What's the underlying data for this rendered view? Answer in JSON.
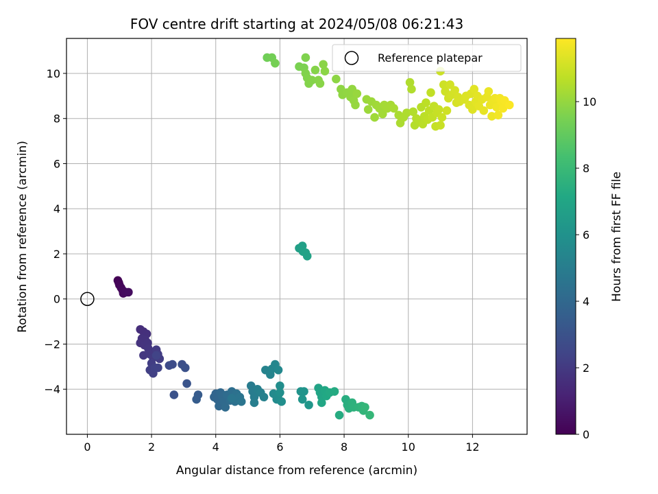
{
  "chart_data": {
    "type": "scatter",
    "title": "FOV centre drift starting at 2024/05/08 06:21:43",
    "xlabel": "Angular distance from reference (arcmin)",
    "ylabel": "Rotation from reference (arcmin)",
    "xlim": [
      -0.65,
      13.7
    ],
    "ylim": [
      -6.0,
      11.55
    ],
    "x_ticks": [
      0,
      2,
      4,
      6,
      8,
      10,
      12
    ],
    "y_ticks": [
      -4,
      -2,
      0,
      2,
      4,
      6,
      8,
      10
    ],
    "grid": true,
    "legend": {
      "position": "top-right",
      "entries": [
        "Reference platepar"
      ]
    },
    "colorbar": {
      "label": "Hours from first FF file",
      "colormap": "viridis",
      "range": [
        0,
        11.9
      ],
      "ticks": [
        0,
        2,
        4,
        6,
        8,
        10
      ]
    },
    "reference_point": {
      "x": 0,
      "y": 0,
      "label": "Reference platepar"
    },
    "points": [
      {
        "x": 0.95,
        "y": 0.82,
        "t": 0.05
      },
      {
        "x": 0.98,
        "y": 0.72,
        "t": 0.1
      },
      {
        "x": 1.0,
        "y": 0.62,
        "t": 0.15
      },
      {
        "x": 1.05,
        "y": 0.5,
        "t": 0.2
      },
      {
        "x": 1.1,
        "y": 0.38,
        "t": 0.25
      },
      {
        "x": 1.12,
        "y": 0.25,
        "t": 0.3
      },
      {
        "x": 1.2,
        "y": 0.3,
        "t": 0.35
      },
      {
        "x": 1.28,
        "y": 0.3,
        "t": 0.4
      },
      {
        "x": 1.65,
        "y": -1.35,
        "t": 1.55
      },
      {
        "x": 1.75,
        "y": -1.45,
        "t": 1.6
      },
      {
        "x": 1.85,
        "y": -1.55,
        "t": 1.65
      },
      {
        "x": 1.7,
        "y": -1.75,
        "t": 1.7
      },
      {
        "x": 1.8,
        "y": -1.8,
        "t": 1.72
      },
      {
        "x": 1.65,
        "y": -1.95,
        "t": 1.75
      },
      {
        "x": 1.78,
        "y": -2.05,
        "t": 1.78
      },
      {
        "x": 1.88,
        "y": -1.95,
        "t": 1.8
      },
      {
        "x": 1.9,
        "y": -2.2,
        "t": 1.85
      },
      {
        "x": 1.75,
        "y": -2.5,
        "t": 1.9
      },
      {
        "x": 1.95,
        "y": -2.45,
        "t": 1.95
      },
      {
        "x": 2.05,
        "y": -2.6,
        "t": 2.0
      },
      {
        "x": 2.15,
        "y": -2.25,
        "t": 2.05
      },
      {
        "x": 2.2,
        "y": -2.45,
        "t": 2.1
      },
      {
        "x": 2.25,
        "y": -2.65,
        "t": 2.12
      },
      {
        "x": 2.0,
        "y": -2.85,
        "t": 2.15
      },
      {
        "x": 1.95,
        "y": -3.15,
        "t": 2.2
      },
      {
        "x": 2.05,
        "y": -3.3,
        "t": 2.25
      },
      {
        "x": 2.1,
        "y": -3.05,
        "t": 2.3
      },
      {
        "x": 2.2,
        "y": -3.05,
        "t": 2.35
      },
      {
        "x": 2.15,
        "y": -2.5,
        "t": 2.38
      },
      {
        "x": 2.55,
        "y": -2.95,
        "t": 2.7
      },
      {
        "x": 2.65,
        "y": -2.9,
        "t": 2.75
      },
      {
        "x": 2.95,
        "y": -2.9,
        "t": 2.85
      },
      {
        "x": 3.05,
        "y": -3.05,
        "t": 2.95
      },
      {
        "x": 2.7,
        "y": -4.25,
        "t": 3.0
      },
      {
        "x": 3.1,
        "y": -3.75,
        "t": 3.1
      },
      {
        "x": 3.45,
        "y": -4.25,
        "t": 3.4
      },
      {
        "x": 3.4,
        "y": -4.45,
        "t": 3.45
      },
      {
        "x": 3.95,
        "y": -4.35,
        "t": 3.8
      },
      {
        "x": 4.0,
        "y": -4.2,
        "t": 3.85
      },
      {
        "x": 4.05,
        "y": -4.45,
        "t": 3.9
      },
      {
        "x": 4.1,
        "y": -4.75,
        "t": 3.95
      },
      {
        "x": 4.15,
        "y": -4.15,
        "t": 4.0
      },
      {
        "x": 4.2,
        "y": -4.3,
        "t": 4.05
      },
      {
        "x": 4.25,
        "y": -4.55,
        "t": 4.1
      },
      {
        "x": 4.3,
        "y": -4.8,
        "t": 4.15
      },
      {
        "x": 4.35,
        "y": -4.25,
        "t": 4.2
      },
      {
        "x": 4.45,
        "y": -4.5,
        "t": 4.25
      },
      {
        "x": 4.5,
        "y": -4.1,
        "t": 4.3
      },
      {
        "x": 4.55,
        "y": -4.35,
        "t": 4.35
      },
      {
        "x": 4.6,
        "y": -4.55,
        "t": 4.4
      },
      {
        "x": 4.65,
        "y": -4.2,
        "t": 4.45
      },
      {
        "x": 4.7,
        "y": -4.45,
        "t": 4.5
      },
      {
        "x": 4.75,
        "y": -4.35,
        "t": 4.55
      },
      {
        "x": 4.8,
        "y": -4.55,
        "t": 4.6
      },
      {
        "x": 4.5,
        "y": -4.4,
        "t": 4.62
      },
      {
        "x": 5.1,
        "y": -3.85,
        "t": 4.9
      },
      {
        "x": 5.15,
        "y": -4.1,
        "t": 4.95
      },
      {
        "x": 5.2,
        "y": -4.35,
        "t": 5.0
      },
      {
        "x": 5.2,
        "y": -4.6,
        "t": 5.05
      },
      {
        "x": 5.3,
        "y": -4.0,
        "t": 5.1
      },
      {
        "x": 5.4,
        "y": -4.15,
        "t": 5.15
      },
      {
        "x": 5.5,
        "y": -4.35,
        "t": 5.2
      },
      {
        "x": 5.55,
        "y": -3.15,
        "t": 5.3
      },
      {
        "x": 5.7,
        "y": -3.35,
        "t": 5.35
      },
      {
        "x": 5.75,
        "y": -3.1,
        "t": 5.4
      },
      {
        "x": 5.85,
        "y": -2.9,
        "t": 5.45
      },
      {
        "x": 5.95,
        "y": -3.15,
        "t": 5.5
      },
      {
        "x": 5.8,
        "y": -4.2,
        "t": 5.6
      },
      {
        "x": 5.9,
        "y": -4.45,
        "t": 5.65
      },
      {
        "x": 5.95,
        "y": -4.25,
        "t": 5.7
      },
      {
        "x": 6.0,
        "y": -3.85,
        "t": 5.75
      },
      {
        "x": 6.05,
        "y": -4.55,
        "t": 5.8
      },
      {
        "x": 6.0,
        "y": -4.15,
        "t": 5.85
      },
      {
        "x": 6.65,
        "y": -4.1,
        "t": 6.05
      },
      {
        "x": 6.75,
        "y": -4.1,
        "t": 6.1
      },
      {
        "x": 6.7,
        "y": -4.45,
        "t": 6.15
      },
      {
        "x": 6.9,
        "y": -4.7,
        "t": 6.2
      },
      {
        "x": 6.6,
        "y": 2.25,
        "t": 6.7
      },
      {
        "x": 6.7,
        "y": 2.35,
        "t": 6.75
      },
      {
        "x": 6.72,
        "y": 2.1,
        "t": 6.8
      },
      {
        "x": 6.8,
        "y": 2.05,
        "t": 6.82
      },
      {
        "x": 6.85,
        "y": 1.9,
        "t": 6.85
      },
      {
        "x": 7.2,
        "y": -3.95,
        "t": 6.9
      },
      {
        "x": 7.25,
        "y": -4.15,
        "t": 6.95
      },
      {
        "x": 7.3,
        "y": -4.35,
        "t": 7.0
      },
      {
        "x": 7.3,
        "y": -4.6,
        "t": 7.05
      },
      {
        "x": 7.4,
        "y": -4.05,
        "t": 7.1
      },
      {
        "x": 7.45,
        "y": -4.3,
        "t": 7.15
      },
      {
        "x": 7.55,
        "y": -4.15,
        "t": 7.2
      },
      {
        "x": 7.7,
        "y": -4.1,
        "t": 7.25
      },
      {
        "x": 7.85,
        "y": -5.15,
        "t": 7.3
      },
      {
        "x": 8.05,
        "y": -4.45,
        "t": 7.4
      },
      {
        "x": 8.1,
        "y": -4.7,
        "t": 7.45
      },
      {
        "x": 8.15,
        "y": -4.85,
        "t": 7.5
      },
      {
        "x": 8.25,
        "y": -4.6,
        "t": 7.55
      },
      {
        "x": 8.3,
        "y": -4.8,
        "t": 7.6
      },
      {
        "x": 8.45,
        "y": -4.8,
        "t": 7.65
      },
      {
        "x": 8.55,
        "y": -4.75,
        "t": 7.7
      },
      {
        "x": 8.6,
        "y": -4.95,
        "t": 7.75
      },
      {
        "x": 8.65,
        "y": -4.8,
        "t": 7.8
      },
      {
        "x": 8.8,
        "y": -5.15,
        "t": 7.85
      },
      {
        "x": 5.6,
        "y": 10.7,
        "t": 9.3
      },
      {
        "x": 5.75,
        "y": 10.7,
        "t": 9.35
      },
      {
        "x": 5.85,
        "y": 10.45,
        "t": 9.4
      },
      {
        "x": 6.6,
        "y": 10.3,
        "t": 9.5
      },
      {
        "x": 6.75,
        "y": 10.25,
        "t": 9.55
      },
      {
        "x": 6.8,
        "y": 10.7,
        "t": 9.6
      },
      {
        "x": 6.8,
        "y": 10.0,
        "t": 9.62
      },
      {
        "x": 6.85,
        "y": 9.8,
        "t": 9.65
      },
      {
        "x": 6.9,
        "y": 9.55,
        "t": 9.68
      },
      {
        "x": 7.0,
        "y": 9.7,
        "t": 9.7
      },
      {
        "x": 7.1,
        "y": 10.15,
        "t": 9.72
      },
      {
        "x": 7.2,
        "y": 9.7,
        "t": 9.75
      },
      {
        "x": 7.25,
        "y": 9.55,
        "t": 9.78
      },
      {
        "x": 7.35,
        "y": 10.4,
        "t": 9.8
      },
      {
        "x": 7.4,
        "y": 10.1,
        "t": 9.82
      },
      {
        "x": 7.75,
        "y": 9.75,
        "t": 9.85
      },
      {
        "x": 7.9,
        "y": 9.3,
        "t": 9.88
      },
      {
        "x": 7.95,
        "y": 9.05,
        "t": 9.9
      },
      {
        "x": 8.1,
        "y": 9.15,
        "t": 9.92
      },
      {
        "x": 8.2,
        "y": 8.95,
        "t": 9.95
      },
      {
        "x": 8.25,
        "y": 9.3,
        "t": 9.97
      },
      {
        "x": 8.3,
        "y": 8.8,
        "t": 10.0
      },
      {
        "x": 8.35,
        "y": 8.6,
        "t": 10.02
      },
      {
        "x": 8.4,
        "y": 9.1,
        "t": 10.05
      },
      {
        "x": 8.7,
        "y": 8.85,
        "t": 10.1
      },
      {
        "x": 8.75,
        "y": 8.4,
        "t": 10.12
      },
      {
        "x": 8.85,
        "y": 8.75,
        "t": 10.15
      },
      {
        "x": 8.95,
        "y": 8.05,
        "t": 10.18
      },
      {
        "x": 9.0,
        "y": 8.6,
        "t": 10.2
      },
      {
        "x": 9.1,
        "y": 8.45,
        "t": 10.22
      },
      {
        "x": 9.2,
        "y": 8.2,
        "t": 10.25
      },
      {
        "x": 9.25,
        "y": 8.6,
        "t": 10.28
      },
      {
        "x": 9.35,
        "y": 8.45,
        "t": 10.3
      },
      {
        "x": 9.45,
        "y": 8.6,
        "t": 10.32
      },
      {
        "x": 9.55,
        "y": 8.45,
        "t": 10.35
      },
      {
        "x": 9.7,
        "y": 8.15,
        "t": 10.38
      },
      {
        "x": 9.75,
        "y": 7.8,
        "t": 10.4
      },
      {
        "x": 9.85,
        "y": 8.05,
        "t": 10.42
      },
      {
        "x": 9.95,
        "y": 8.25,
        "t": 10.45
      },
      {
        "x": 10.05,
        "y": 9.6,
        "t": 10.48
      },
      {
        "x": 10.1,
        "y": 9.3,
        "t": 10.5
      },
      {
        "x": 10.15,
        "y": 8.3,
        "t": 10.52
      },
      {
        "x": 10.2,
        "y": 7.7,
        "t": 10.55
      },
      {
        "x": 10.25,
        "y": 8.0,
        "t": 10.58
      },
      {
        "x": 10.35,
        "y": 7.9,
        "t": 10.6
      },
      {
        "x": 10.4,
        "y": 8.5,
        "t": 10.62
      },
      {
        "x": 10.45,
        "y": 7.75,
        "t": 10.65
      },
      {
        "x": 10.5,
        "y": 8.1,
        "t": 10.68
      },
      {
        "x": 10.55,
        "y": 8.7,
        "t": 10.7
      },
      {
        "x": 10.6,
        "y": 7.95,
        "t": 10.72
      },
      {
        "x": 10.65,
        "y": 8.35,
        "t": 10.75
      },
      {
        "x": 10.7,
        "y": 9.15,
        "t": 10.78
      },
      {
        "x": 10.75,
        "y": 8.05,
        "t": 10.8
      },
      {
        "x": 10.8,
        "y": 8.55,
        "t": 10.82
      },
      {
        "x": 10.85,
        "y": 7.65,
        "t": 10.85
      },
      {
        "x": 10.9,
        "y": 8.25,
        "t": 10.88
      },
      {
        "x": 10.95,
        "y": 8.4,
        "t": 10.9
      },
      {
        "x": 11.0,
        "y": 7.7,
        "t": 10.92
      },
      {
        "x": 11.05,
        "y": 8.05,
        "t": 10.95
      },
      {
        "x": 11.0,
        "y": 10.1,
        "t": 10.97
      },
      {
        "x": 11.1,
        "y": 9.5,
        "t": 11.0
      },
      {
        "x": 11.15,
        "y": 9.2,
        "t": 11.02
      },
      {
        "x": 11.2,
        "y": 8.35,
        "t": 11.05
      },
      {
        "x": 11.25,
        "y": 8.9,
        "t": 11.08
      },
      {
        "x": 11.3,
        "y": 9.5,
        "t": 11.1
      },
      {
        "x": 11.35,
        "y": 9.05,
        "t": 11.12
      },
      {
        "x": 11.45,
        "y": 9.25,
        "t": 11.15
      },
      {
        "x": 11.5,
        "y": 8.7,
        "t": 11.18
      },
      {
        "x": 11.55,
        "y": 8.95,
        "t": 11.2
      },
      {
        "x": 11.6,
        "y": 8.75,
        "t": 11.22
      },
      {
        "x": 11.75,
        "y": 8.85,
        "t": 11.25
      },
      {
        "x": 11.8,
        "y": 9.0,
        "t": 11.28
      },
      {
        "x": 11.9,
        "y": 8.6,
        "t": 11.3
      },
      {
        "x": 11.95,
        "y": 9.1,
        "t": 11.32
      },
      {
        "x": 12.0,
        "y": 8.4,
        "t": 11.35
      },
      {
        "x": 12.05,
        "y": 9.3,
        "t": 11.38
      },
      {
        "x": 12.1,
        "y": 8.75,
        "t": 11.4
      },
      {
        "x": 12.15,
        "y": 9.0,
        "t": 11.42
      },
      {
        "x": 12.2,
        "y": 8.55,
        "t": 11.45
      },
      {
        "x": 12.3,
        "y": 8.85,
        "t": 11.48
      },
      {
        "x": 12.35,
        "y": 8.35,
        "t": 11.5
      },
      {
        "x": 12.45,
        "y": 8.95,
        "t": 11.52
      },
      {
        "x": 12.5,
        "y": 9.2,
        "t": 11.55
      },
      {
        "x": 12.55,
        "y": 8.6,
        "t": 11.58
      },
      {
        "x": 12.6,
        "y": 8.1,
        "t": 11.6
      },
      {
        "x": 12.65,
        "y": 8.75,
        "t": 11.62
      },
      {
        "x": 12.7,
        "y": 8.9,
        "t": 11.65
      },
      {
        "x": 12.75,
        "y": 8.5,
        "t": 11.68
      },
      {
        "x": 12.8,
        "y": 8.15,
        "t": 11.7
      },
      {
        "x": 12.85,
        "y": 8.9,
        "t": 11.72
      },
      {
        "x": 12.9,
        "y": 8.75,
        "t": 11.75
      },
      {
        "x": 12.95,
        "y": 8.45,
        "t": 11.78
      },
      {
        "x": 13.0,
        "y": 8.8,
        "t": 11.8
      },
      {
        "x": 13.15,
        "y": 8.6,
        "t": 11.85
      }
    ]
  }
}
